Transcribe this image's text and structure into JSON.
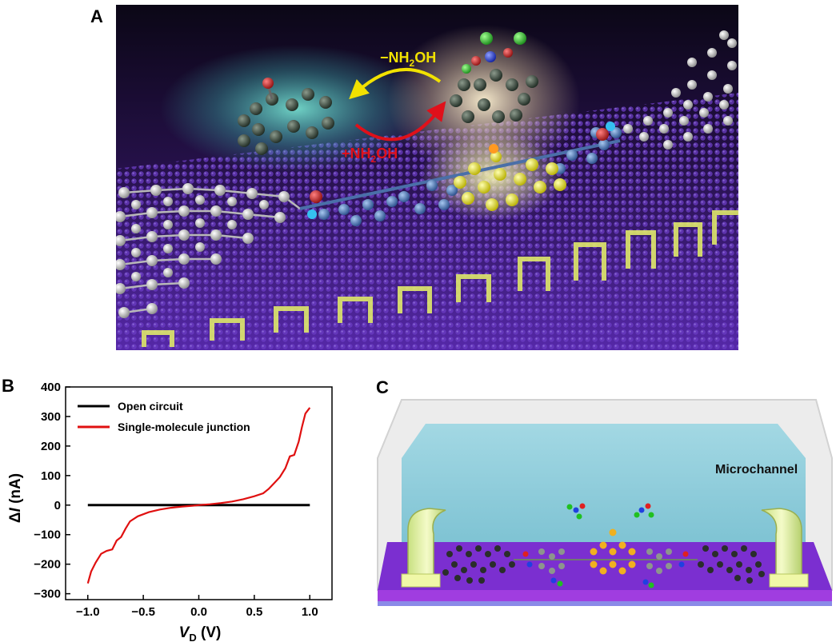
{
  "panels": {
    "a": {
      "letter": "A",
      "reaction": {
        "removal_prefix": "−NH",
        "removal_subscript": "2",
        "removal_suffix": "OH",
        "addition_prefix": "+NH",
        "addition_subscript": "2",
        "addition_suffix": "OH"
      },
      "colors": {
        "removal_arrow": "#f2e200",
        "addition_arrow": "#e0101a",
        "molecule_core": "#f0ee2a",
        "surface": "#4a1d95"
      }
    },
    "b": {
      "letter": "B",
      "ylabel_prefix": "Δ",
      "ylabel_symbol": "I",
      "ylabel_unit": "(nA)",
      "xlabel_symbol": "V",
      "xlabel_subscript": "D",
      "xlabel_unit": "(V)"
    },
    "c": {
      "letter": "C",
      "channel_label": "Microchannel",
      "colors": {
        "channel": "#7ec6d4",
        "substrate": "#9b30d8",
        "electrode": "#e2ef9a"
      }
    }
  },
  "chart_data": {
    "type": "line",
    "xlim": [
      -1.2,
      1.2
    ],
    "ylim": [
      -320,
      400
    ],
    "xticks": [
      -1.0,
      -0.5,
      0.0,
      0.5,
      1.0
    ],
    "xtick_labels": [
      "−1.0",
      "−0.5",
      "0.0",
      "0.5",
      "1.0"
    ],
    "yticks": [
      -300,
      -200,
      -100,
      0,
      100,
      200,
      300,
      400
    ],
    "ytick_labels": [
      "−300",
      "−200",
      "−100",
      "0",
      "100",
      "200",
      "300",
      "400"
    ],
    "legend_position": "top-left",
    "series": [
      {
        "name": "Open circuit",
        "color": "#000000",
        "points": [
          [
            -1.0,
            0
          ],
          [
            1.0,
            0
          ]
        ]
      },
      {
        "name": "Single-molecule junction",
        "color": "#e01010",
        "points": [
          [
            -1.0,
            -265
          ],
          [
            -0.97,
            -225
          ],
          [
            -0.93,
            -195
          ],
          [
            -0.88,
            -165
          ],
          [
            -0.83,
            -155
          ],
          [
            -0.78,
            -150
          ],
          [
            -0.74,
            -120
          ],
          [
            -0.7,
            -108
          ],
          [
            -0.66,
            -80
          ],
          [
            -0.62,
            -55
          ],
          [
            -0.55,
            -38
          ],
          [
            -0.45,
            -24
          ],
          [
            -0.35,
            -15
          ],
          [
            -0.25,
            -9
          ],
          [
            -0.15,
            -5
          ],
          [
            -0.05,
            -2
          ],
          [
            0.0,
            0
          ],
          [
            0.1,
            3
          ],
          [
            0.2,
            7
          ],
          [
            0.3,
            12
          ],
          [
            0.4,
            20
          ],
          [
            0.5,
            30
          ],
          [
            0.58,
            40
          ],
          [
            0.63,
            55
          ],
          [
            0.68,
            75
          ],
          [
            0.73,
            95
          ],
          [
            0.78,
            125
          ],
          [
            0.82,
            165
          ],
          [
            0.86,
            170
          ],
          [
            0.9,
            215
          ],
          [
            0.93,
            265
          ],
          [
            0.96,
            310
          ],
          [
            1.0,
            330
          ]
        ]
      }
    ]
  }
}
